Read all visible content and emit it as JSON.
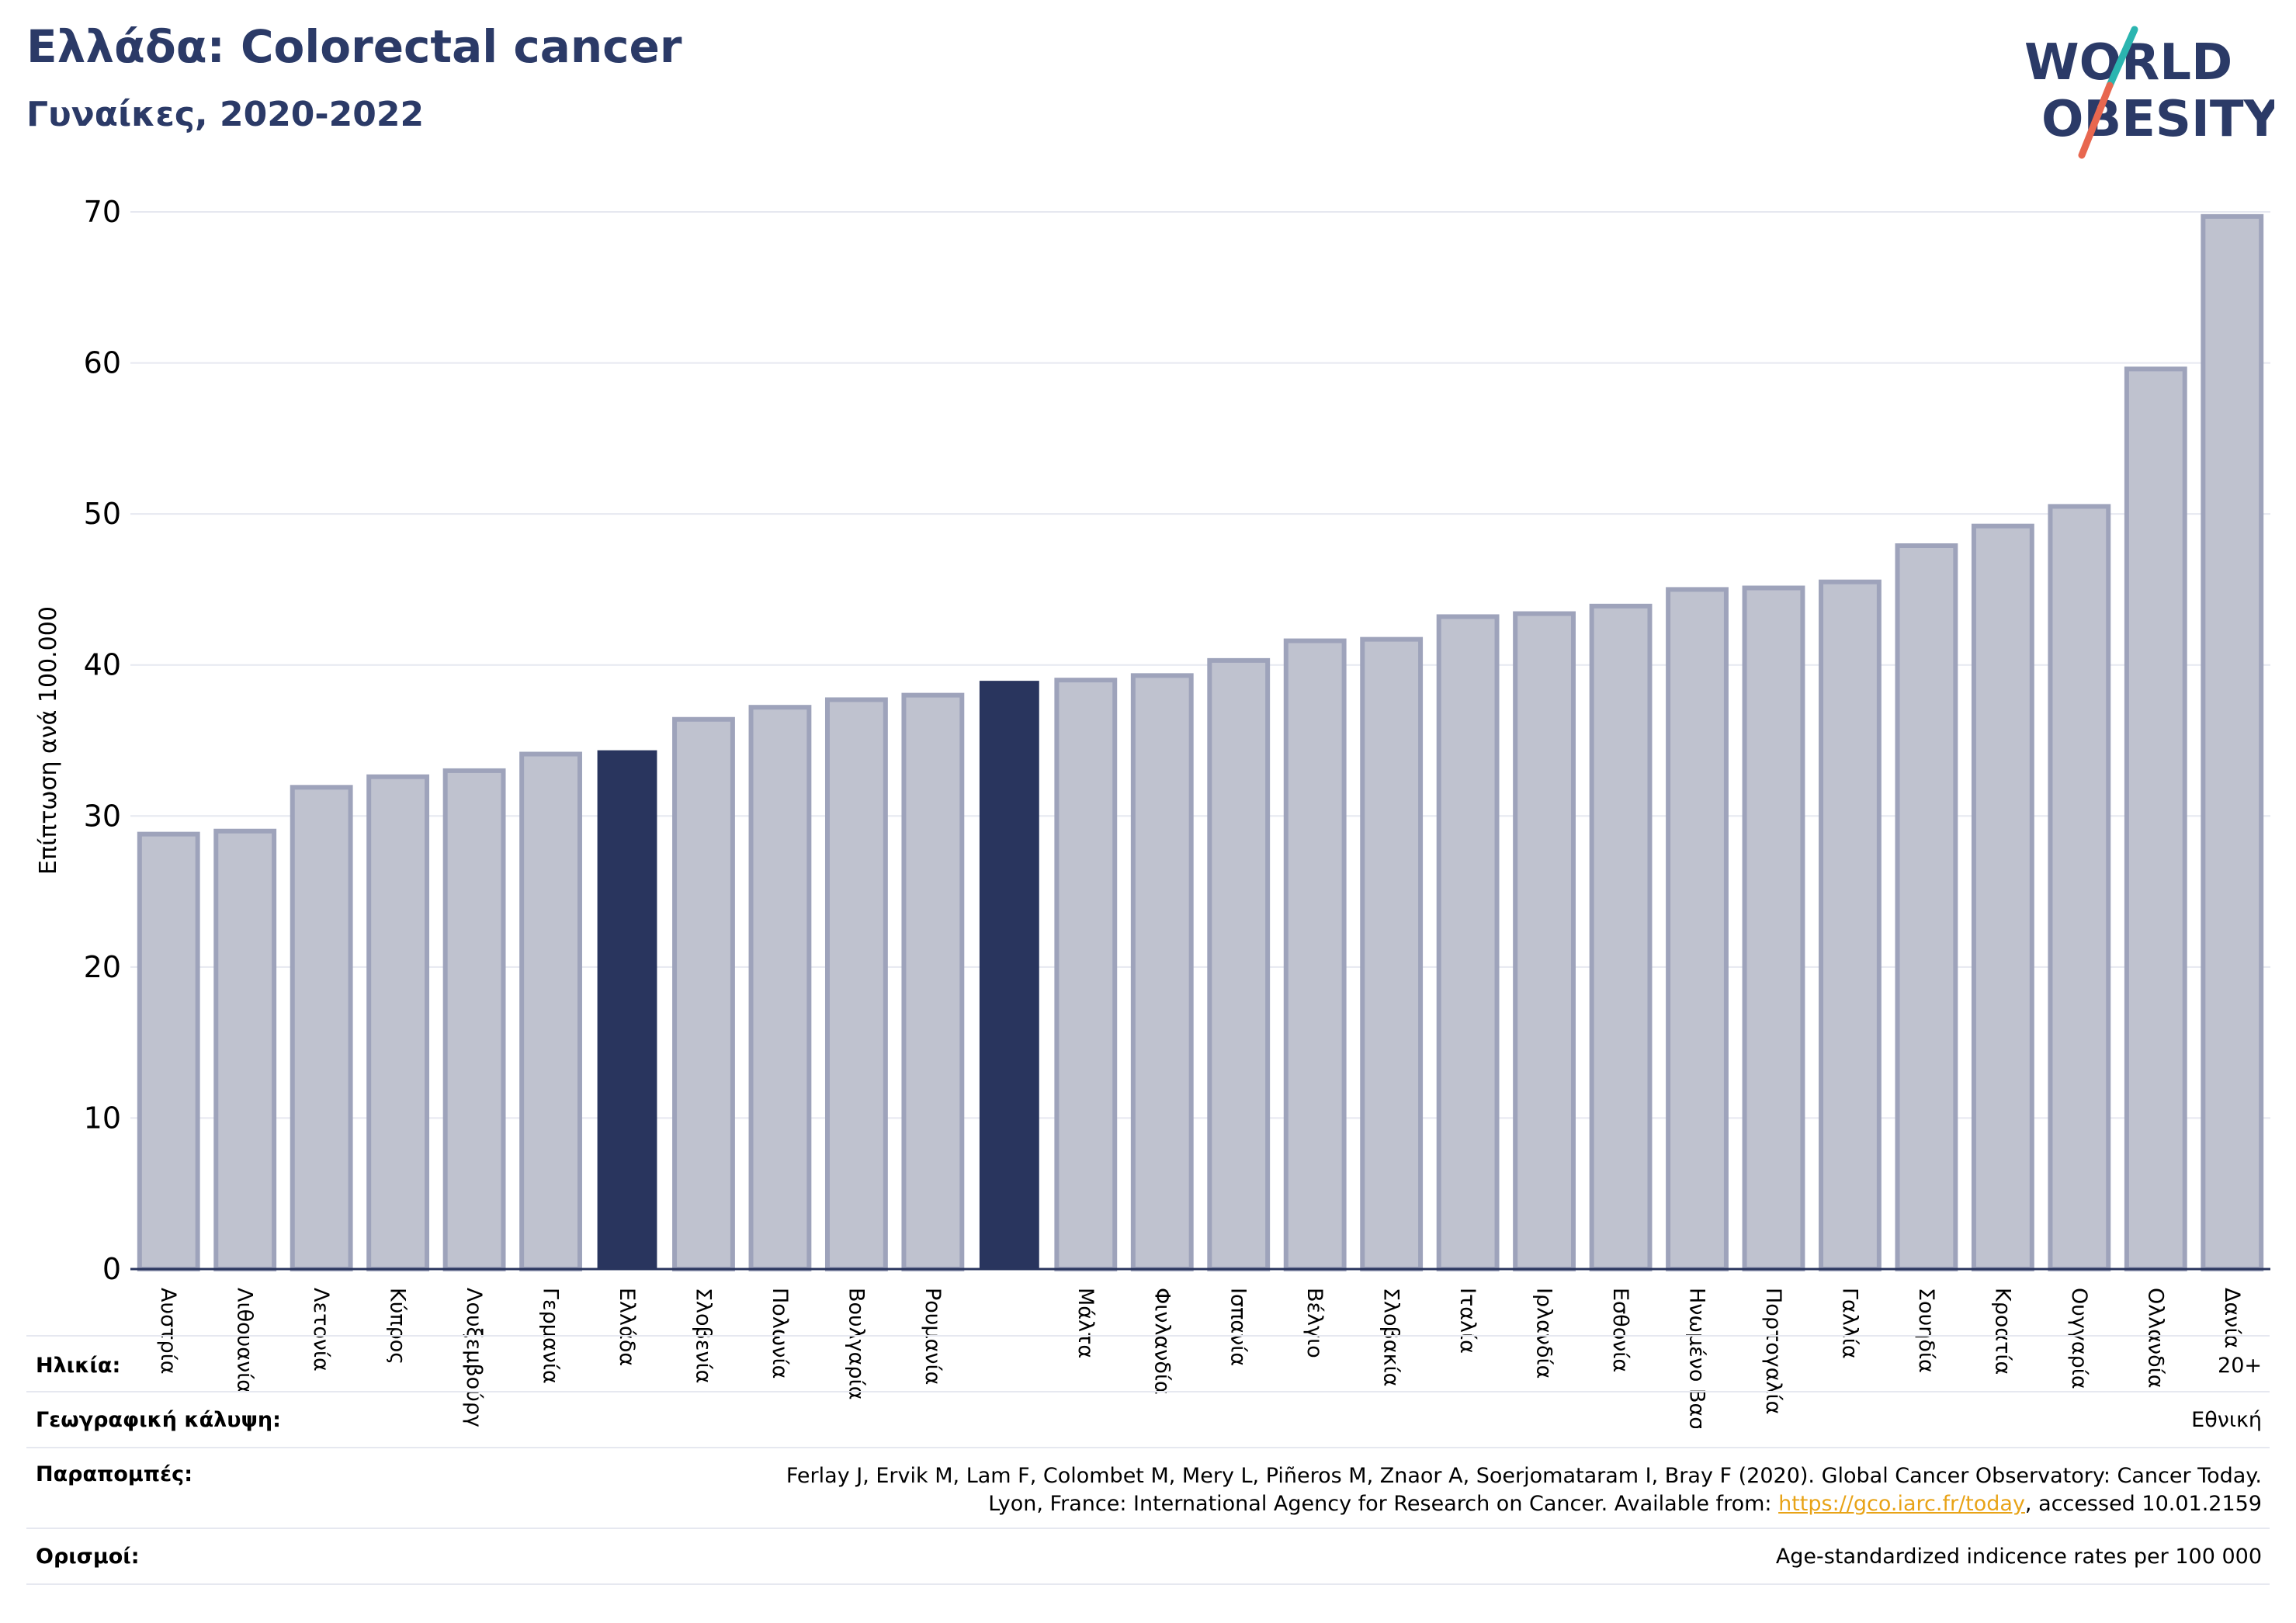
{
  "header": {
    "title": "Ελλάδα: Colorectal cancer",
    "subtitle": "Γυναίκες, 2020-2022"
  },
  "logo": {
    "line1": "WORLD",
    "line2": "OBESITY",
    "colors": {
      "text": "#2b3a67",
      "slash_top": "#2bb5b0",
      "slash_bottom": "#e8674f"
    }
  },
  "chart_data": {
    "type": "bar",
    "ylabel": "Επίπτωση ανά 100.000",
    "ylim": [
      0,
      70
    ],
    "yticks": [
      0,
      10,
      20,
      30,
      40,
      50,
      60,
      70
    ],
    "grid": true,
    "categories": [
      "Αυστρία",
      "Λιθουανία",
      "Λετονία",
      "Κύπρος",
      "Λουξεμβούργο",
      "Γερμανία",
      "Ελλάδα",
      "Σλοβενία",
      "Πολωνία",
      "Βουλγαρία",
      "Ρουμανία",
      "",
      "Μάλτα",
      "Φινλανδία",
      "Ισπανία",
      "Βέλγιο",
      "Σλοβακία",
      "Ιταλία",
      "Ιρλανδία",
      "Εσθονία",
      "Ηνωμένο Βασίλειο",
      "Πορτογαλία",
      "Γαλλία",
      "Σουηδία",
      "Κροατία",
      "Ουγγαρία",
      "Ολλανδία",
      "Δανία"
    ],
    "values": [
      28.8,
      29.0,
      31.9,
      32.6,
      33.0,
      34.1,
      34.3,
      36.4,
      37.2,
      37.7,
      38.0,
      38.9,
      39.0,
      39.3,
      40.3,
      41.6,
      41.7,
      43.2,
      43.4,
      43.9,
      45.0,
      45.1,
      45.5,
      47.9,
      49.2,
      50.5,
      59.6,
      69.7
    ],
    "highlighted": [
      6,
      11
    ],
    "colors": {
      "bar": "#bfc2cf",
      "bar_edge": "#9ea3bb",
      "highlight": "#29355e",
      "grid": "#e6e8f0",
      "axis": "#29355e"
    }
  },
  "footer": {
    "age": {
      "label": "Ηλικία:",
      "value": "20+"
    },
    "coverage": {
      "label": "Γεωγραφική κάλυψη:",
      "value": "Εθνική"
    },
    "references": {
      "label": "Παραπομπές:",
      "line1": "Ferlay J, Ervik M, Lam F, Colombet M, Mery L, Piñeros M, Znaor A, Soerjomataram I, Bray F (2020). Global Cancer Observatory: Cancer Today.",
      "line2_pre": "Lyon, France: International Agency for Research on Cancer. Available from: ",
      "link": "https://gco.iarc.fr/today",
      "line2_post": ", accessed 10.01.2159"
    },
    "definitions": {
      "label": "Ορισμοί:",
      "value": "Age-standardized indicence rates per 100 000"
    }
  }
}
